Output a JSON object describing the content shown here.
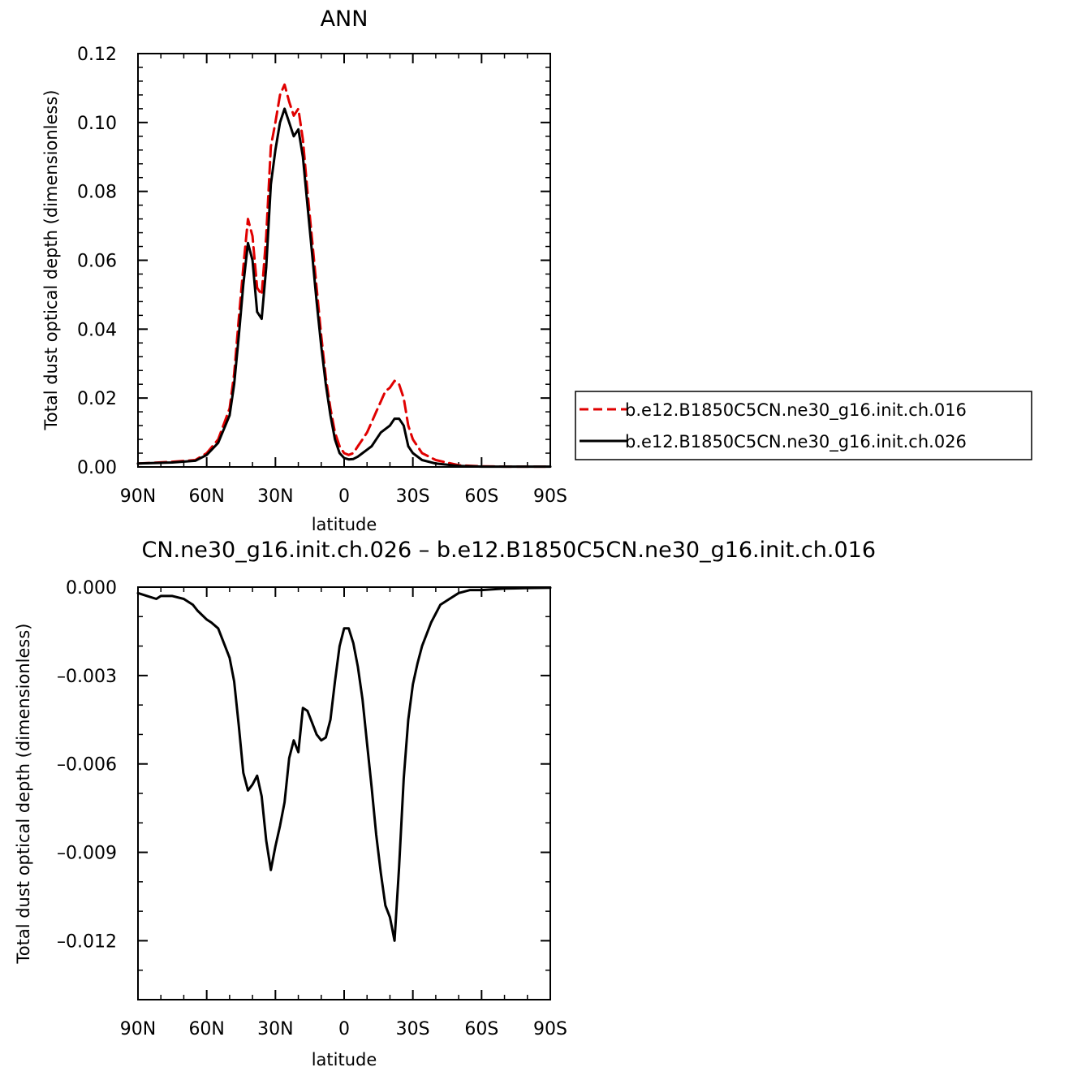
{
  "chart_data": [
    {
      "type": "line",
      "title": "ANN",
      "xlabel": "latitude",
      "ylabel": "Total dust optical depth (dimensionless)",
      "xlim": [
        90,
        -90
      ],
      "ylim": [
        0,
        0.12
      ],
      "x_ticks": [
        90,
        60,
        30,
        0,
        -30,
        -60,
        -90
      ],
      "x_tick_labels": [
        "90N",
        "60N",
        "30N",
        "0",
        "30S",
        "60S",
        "90S"
      ],
      "y_ticks": [
        0,
        0.02,
        0.04,
        0.06,
        0.08,
        0.1,
        0.12
      ],
      "y_tick_labels": [
        "0.00",
        "0.02",
        "0.04",
        "0.06",
        "0.08",
        "0.10",
        "0.12"
      ],
      "legend_position": "right",
      "series": [
        {
          "name": "b.e12.B1850C5CN.ne30_g16.init.ch.016",
          "color": "#e00000",
          "style": "dashed",
          "x": [
            90,
            75,
            65,
            60,
            55,
            50,
            48,
            46,
            44,
            42,
            40,
            38,
            36,
            34,
            32,
            30,
            28,
            26,
            24,
            22,
            20,
            18,
            16,
            14,
            12,
            10,
            8,
            6,
            4,
            2,
            0,
            -2,
            -4,
            -6,
            -8,
            -10,
            -12,
            -14,
            -16,
            -18,
            -20,
            -22,
            -24,
            -26,
            -28,
            -30,
            -34,
            -40,
            -50,
            -60,
            -70,
            -90
          ],
          "y": [
            0.001,
            0.0015,
            0.002,
            0.004,
            0.008,
            0.017,
            0.027,
            0.043,
            0.058,
            0.072,
            0.067,
            0.052,
            0.05,
            0.067,
            0.093,
            0.1,
            0.108,
            0.111,
            0.106,
            0.102,
            0.104,
            0.095,
            0.08,
            0.066,
            0.052,
            0.038,
            0.026,
            0.017,
            0.01,
            0.006,
            0.004,
            0.0035,
            0.004,
            0.006,
            0.008,
            0.01,
            0.013,
            0.016,
            0.019,
            0.022,
            0.023,
            0.025,
            0.024,
            0.02,
            0.012,
            0.008,
            0.004,
            0.002,
            0.0005,
            0.0002,
            0.0001,
            0.0001
          ]
        },
        {
          "name": "b.e12.B1850C5CN.ne30_g16.init.ch.026",
          "color": "#000000",
          "style": "solid",
          "x": [
            90,
            75,
            65,
            60,
            55,
            50,
            48,
            46,
            44,
            42,
            40,
            38,
            36,
            34,
            32,
            30,
            28,
            26,
            24,
            22,
            20,
            18,
            16,
            14,
            12,
            10,
            8,
            6,
            4,
            2,
            0,
            -2,
            -4,
            -6,
            -8,
            -10,
            -12,
            -14,
            -16,
            -18,
            -20,
            -22,
            -24,
            -26,
            -28,
            -30,
            -34,
            -40,
            -50,
            -60,
            -70,
            -90
          ],
          "y": [
            0.001,
            0.0013,
            0.0018,
            0.0035,
            0.007,
            0.015,
            0.024,
            0.038,
            0.053,
            0.065,
            0.06,
            0.045,
            0.043,
            0.058,
            0.082,
            0.092,
            0.1,
            0.104,
            0.1,
            0.096,
            0.098,
            0.09,
            0.076,
            0.062,
            0.048,
            0.035,
            0.024,
            0.015,
            0.008,
            0.004,
            0.0026,
            0.0022,
            0.0023,
            0.003,
            0.004,
            0.005,
            0.006,
            0.008,
            0.01,
            0.011,
            0.012,
            0.014,
            0.014,
            0.012,
            0.006,
            0.004,
            0.002,
            0.001,
            0.0003,
            0.0001,
            0.0001,
            0.0001
          ]
        }
      ]
    },
    {
      "type": "line",
      "title": "CN.ne30_g16.init.ch.026 – b.e12.B1850C5CN.ne30_g16.init.ch.016",
      "xlabel": "latitude",
      "ylabel": "Total dust optical depth (dimensionless)",
      "xlim": [
        90,
        -90
      ],
      "ylim": [
        -0.014,
        0
      ],
      "x_ticks": [
        90,
        60,
        30,
        0,
        -30,
        -60,
        -90
      ],
      "x_tick_labels": [
        "90N",
        "60N",
        "30N",
        "0",
        "30S",
        "60S",
        "90S"
      ],
      "y_ticks": [
        0,
        -0.003,
        -0.006,
        -0.009,
        -0.012
      ],
      "y_tick_labels": [
        "0.000",
        "–0.003",
        "–0.006",
        "–0.009",
        "–0.012"
      ],
      "series": [
        {
          "color": "#000000",
          "style": "solid",
          "x": [
            90,
            86,
            82,
            80,
            75,
            70,
            66,
            64,
            60,
            58,
            55,
            50,
            48,
            46,
            44,
            42,
            40,
            38,
            36,
            34,
            32,
            30,
            28,
            26,
            24,
            22,
            20,
            18,
            16,
            14,
            12,
            10,
            8,
            6,
            4,
            2,
            0,
            -2,
            -4,
            -6,
            -8,
            -10,
            -12,
            -14,
            -16,
            -18,
            -20,
            -22,
            -24,
            -26,
            -28,
            -30,
            -32,
            -34,
            -38,
            -42,
            -46,
            -50,
            -55,
            -60,
            -70,
            -80,
            -90
          ],
          "y": [
            -0.0002,
            -0.0003,
            -0.0004,
            -0.0003,
            -0.0003,
            -0.0004,
            -0.0006,
            -0.0008,
            -0.0011,
            -0.0012,
            -0.0014,
            -0.0024,
            -0.0032,
            -0.0047,
            -0.0063,
            -0.0069,
            -0.0067,
            -0.0064,
            -0.0071,
            -0.0086,
            -0.0096,
            -0.0088,
            -0.0081,
            -0.0073,
            -0.0058,
            -0.0052,
            -0.0056,
            -0.0041,
            -0.0042,
            -0.0046,
            -0.005,
            -0.0052,
            -0.0051,
            -0.0045,
            -0.0032,
            -0.002,
            -0.0014,
            -0.0014,
            -0.0019,
            -0.0027,
            -0.0038,
            -0.0053,
            -0.0068,
            -0.0084,
            -0.0097,
            -0.0108,
            -0.0112,
            -0.012,
            -0.0095,
            -0.0065,
            -0.0045,
            -0.0033,
            -0.0026,
            -0.002,
            -0.0012,
            -0.0006,
            -0.0004,
            -0.0002,
            -0.0001,
            -0.0001,
            -5e-05,
            -3e-05,
            -2e-05
          ]
        }
      ]
    }
  ]
}
